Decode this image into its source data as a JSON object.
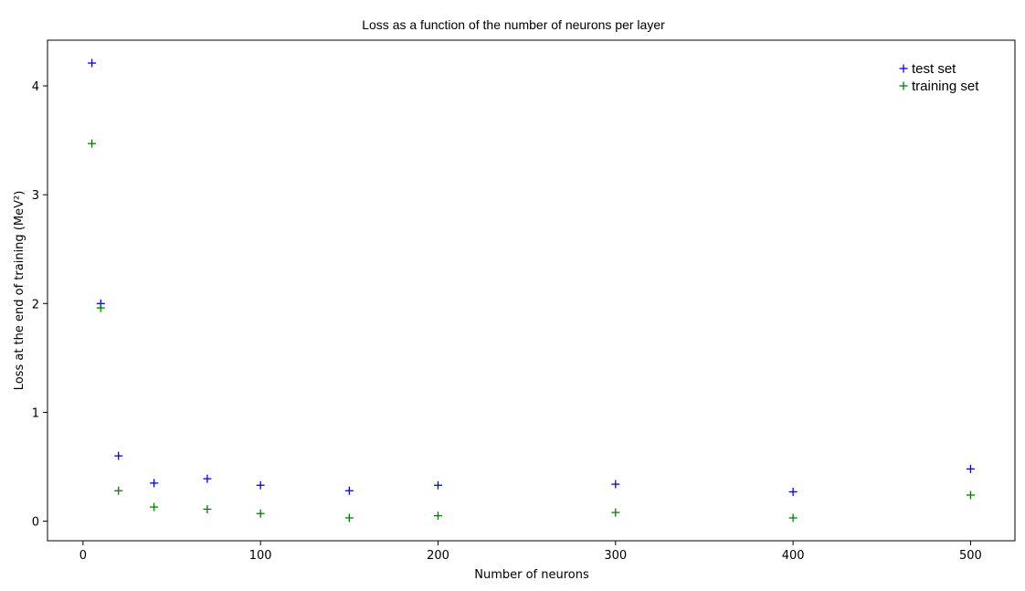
{
  "chart_data": {
    "type": "scatter",
    "title": "Loss as a function of the number of neurons per layer",
    "xlabel": "Number of neurons",
    "ylabel": "Loss at the end of training  (MeV²)",
    "xlim": [
      -20,
      525
    ],
    "ylim": [
      -0.18,
      4.42
    ],
    "x_ticks": [
      0,
      100,
      200,
      300,
      400,
      500
    ],
    "y_ticks": [
      0,
      1,
      2,
      3,
      4
    ],
    "grid": false,
    "legend_position": "top-right",
    "marker": "+",
    "x": [
      5,
      10,
      20,
      40,
      70,
      100,
      150,
      200,
      300,
      400,
      500
    ],
    "series": [
      {
        "name": "test set",
        "color": "#0000ff",
        "values": [
          4.21,
          2.0,
          0.6,
          0.35,
          0.39,
          0.33,
          0.28,
          0.33,
          0.34,
          0.27,
          0.48
        ]
      },
      {
        "name": "training set",
        "color": "#008000",
        "values": [
          3.47,
          1.96,
          0.28,
          0.13,
          0.11,
          0.07,
          0.03,
          0.05,
          0.08,
          0.03,
          0.24
        ]
      }
    ]
  }
}
